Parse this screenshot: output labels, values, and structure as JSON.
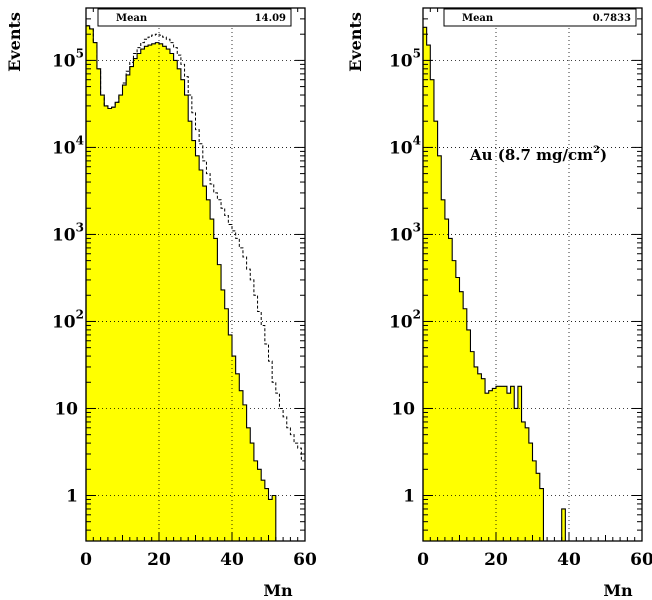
{
  "chart_data": [
    {
      "type": "histogram",
      "ylabel": "Events",
      "xlabel": "Mn",
      "xlim": [
        0,
        60
      ],
      "ylim": [
        0.3,
        400000
      ],
      "yscale": "log",
      "grid": true,
      "fill_color": "#ffff00",
      "xticks": [
        "0",
        "20",
        "40",
        "60"
      ],
      "yticks": [
        {
          "value": 1,
          "base": "1",
          "exp": ""
        },
        {
          "value": 10,
          "base": "10",
          "exp": ""
        },
        {
          "value": 100,
          "base": "10",
          "exp": "2"
        },
        {
          "value": 1000,
          "base": "10",
          "exp": "3"
        },
        {
          "value": 10000,
          "base": "10",
          "exp": "4"
        },
        {
          "value": 100000,
          "base": "10",
          "exp": "5"
        }
      ],
      "stats": {
        "label": "Mean",
        "value": "14.09"
      },
      "series": [
        {
          "style": "filled",
          "bin_width": 1,
          "values": [
            250000,
            230000,
            160000,
            80000,
            40000,
            30000,
            28000,
            29000,
            33000,
            40000,
            52000,
            68000,
            85000,
            105000,
            120000,
            135000,
            145000,
            150000,
            155000,
            160000,
            155000,
            145000,
            135000,
            120000,
            100000,
            80000,
            60000,
            40000,
            20000,
            12000,
            8000,
            5500,
            3600,
            2500,
            1500,
            900,
            450,
            230,
            140,
            70,
            40,
            25,
            16,
            11,
            6,
            4,
            2.5,
            2,
            1.5,
            1.2,
            0.9,
            1
          ]
        },
        {
          "style": "dashed",
          "bin_width": 1,
          "values": [
            250000,
            230000,
            160000,
            80000,
            40000,
            30000,
            28000,
            29000,
            33000,
            40000,
            55000,
            75000,
            95000,
            120000,
            140000,
            160000,
            175000,
            185000,
            195000,
            200000,
            195000,
            185000,
            175000,
            160000,
            140000,
            115000,
            90000,
            65000,
            40000,
            25000,
            16000,
            11000,
            7000,
            5000,
            3800,
            3000,
            2500,
            2000,
            1650,
            1300,
            1100,
            900,
            700,
            550,
            400,
            300,
            200,
            130,
            90,
            55,
            35,
            20,
            15,
            10,
            8,
            6,
            5,
            4,
            3.5,
            2.5
          ]
        }
      ]
    },
    {
      "type": "histogram",
      "ylabel": "Events",
      "xlabel": "Mn",
      "xlim": [
        0,
        60
      ],
      "ylim": [
        0.3,
        400000
      ],
      "yscale": "log",
      "grid": true,
      "fill_color": "#ffff00",
      "xticks": [
        "0",
        "20",
        "40",
        "60"
      ],
      "yticks": [
        {
          "value": 1,
          "base": "1",
          "exp": ""
        },
        {
          "value": 10,
          "base": "10",
          "exp": ""
        },
        {
          "value": 100,
          "base": "10",
          "exp": "2"
        },
        {
          "value": 1000,
          "base": "10",
          "exp": "3"
        },
        {
          "value": 10000,
          "base": "10",
          "exp": "4"
        },
        {
          "value": 100000,
          "base": "10",
          "exp": "5"
        }
      ],
      "stats": {
        "label": "Mean",
        "value": "0.7833"
      },
      "annotation": {
        "text": "Au (8.7 mg/cm",
        "sup": "2",
        "tail": ")"
      },
      "series": [
        {
          "style": "filled",
          "bin_width": 1,
          "values": [
            240000,
            150000,
            60000,
            20000,
            8000,
            2500,
            1500,
            900,
            500,
            320,
            220,
            140,
            80,
            45,
            30,
            25,
            22,
            15,
            16,
            17,
            18,
            18,
            18,
            15,
            18,
            10,
            18,
            7,
            6,
            4,
            2.5,
            1.8,
            1.2,
            0.3,
            0.3,
            0.3,
            0.3,
            0.3,
            0.7,
            0.3
          ]
        }
      ]
    }
  ]
}
